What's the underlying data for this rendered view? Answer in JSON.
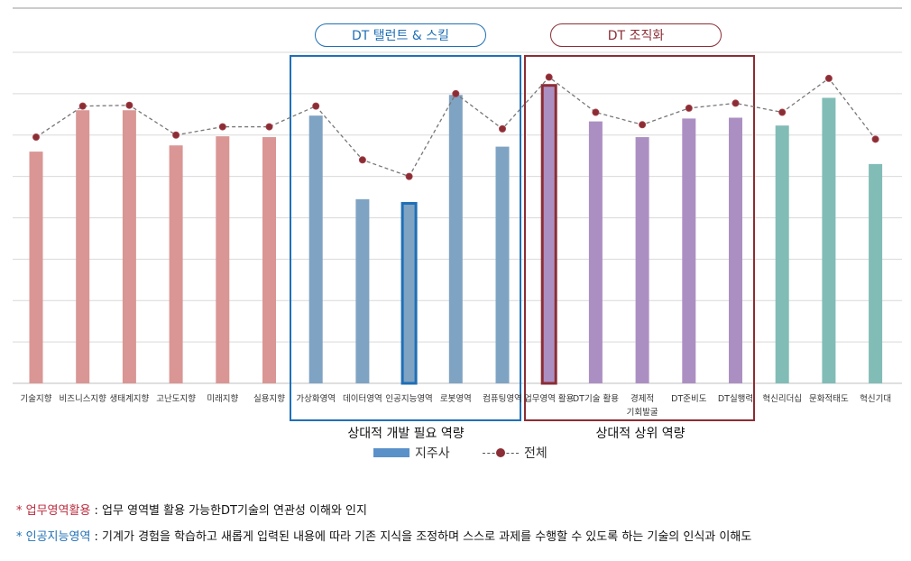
{
  "chart_data": {
    "type": "bar",
    "categories": [
      "기술지향",
      "비즈니스지향",
      "생태계지향",
      "고난도지향",
      "미래지향",
      "실용지향",
      "가상화영역",
      "데이터영역",
      "인공지능영역",
      "로봇영역",
      "컴퓨팅영역",
      "업무영역 활용",
      "DT기술 활용",
      "경제적\n기회발굴",
      "DT준비도",
      "DT실행력",
      "혁신리더십",
      "문화적태도",
      "혁신기대"
    ],
    "series": [
      {
        "name": "지주사",
        "type": "bar",
        "values": [
          5.6,
          6.6,
          6.6,
          5.75,
          5.97,
          5.95,
          6.47,
          4.45,
          4.35,
          6.97,
          5.72,
          7.2,
          6.33,
          5.95,
          6.4,
          6.42,
          6.23,
          6.9,
          5.3
        ]
      },
      {
        "name": "전체",
        "type": "line",
        "values": [
          5.95,
          6.7,
          6.72,
          6.0,
          6.2,
          6.2,
          6.7,
          5.4,
          5.0,
          7.0,
          6.15,
          7.4,
          6.55,
          6.25,
          6.65,
          6.77,
          6.55,
          7.37,
          5.9
        ]
      }
    ],
    "bar_colors": [
      "#d99694",
      "#d99694",
      "#d99694",
      "#d99694",
      "#d99694",
      "#d99694",
      "#7fa3c3",
      "#7fa3c3",
      "#7fa3c3",
      "#7fa3c3",
      "#7fa3c3",
      "#ac8fc2",
      "#ac8fc2",
      "#ac8fc2",
      "#ac8fc2",
      "#ac8fc2",
      "#82bcb6",
      "#82bcb6",
      "#82bcb6"
    ],
    "highlighted": [
      8,
      11
    ],
    "ylim": [
      0,
      8
    ],
    "gridlines": 8,
    "title": "",
    "xlabel": "",
    "ylabel": ""
  },
  "groups": {
    "blue_title": "DT 탤런트 & 스킬",
    "red_title": "DT 조직화",
    "blue_caption": "상대적 개발 필요 역량",
    "red_caption": "상대적 상위 역량"
  },
  "legend": {
    "bar_label": "지주사",
    "line_label": "전체"
  },
  "notes": {
    "n1_star": "* ",
    "n1_term": "업무영역활용",
    "n1_text": " : 업무 영역별 활용 가능한DT기술의 연관성 이해와 인지",
    "n2_star": "* ",
    "n2_term": "인공지능영역",
    "n2_text": " : 기계가 경험을 학습하고 새롭게 입력된 내용에 따라 기존 지식을 조정하며 스스로 과제를 수행할 수 있도록 하는 기술의 인식과 이해도"
  },
  "colors": {
    "blue": "#1f6fb6",
    "red": "#8b2d35",
    "grid": "#d9d9d9"
  }
}
